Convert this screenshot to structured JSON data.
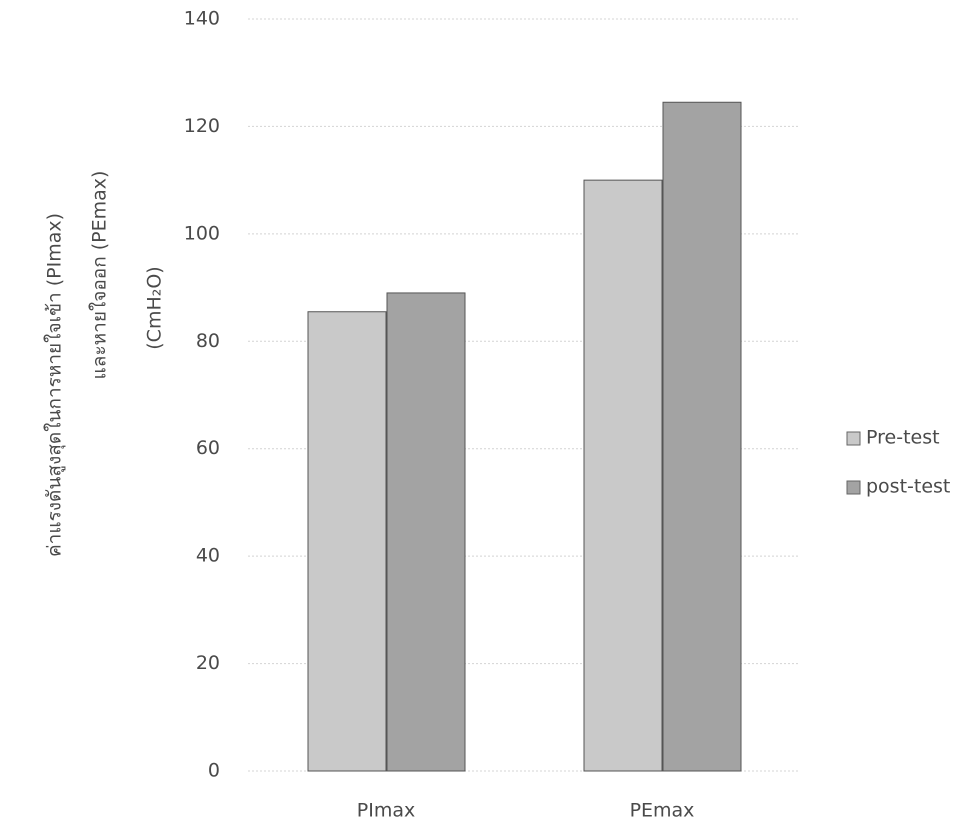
{
  "chart_data": {
    "type": "bar",
    "ylabel": [
      "ค่าแรงดันสูงสุดในการหายใจเข้า (PImax)",
      "และหายใจออก (PEmax)",
      "(CmH₂O)"
    ],
    "categories": [
      "PImax",
      "PEmax"
    ],
    "series": [
      {
        "name": "Pre-test",
        "color": "#c9c9c9",
        "values": [
          85.5,
          110
        ]
      },
      {
        "name": "post-test",
        "color": "#a3a3a3",
        "values": [
          89,
          124.5
        ]
      }
    ],
    "ylim": [
      0,
      140
    ],
    "yticks": [
      0,
      20,
      40,
      60,
      80,
      100,
      120,
      140
    ],
    "grid": true,
    "legend": "right"
  }
}
